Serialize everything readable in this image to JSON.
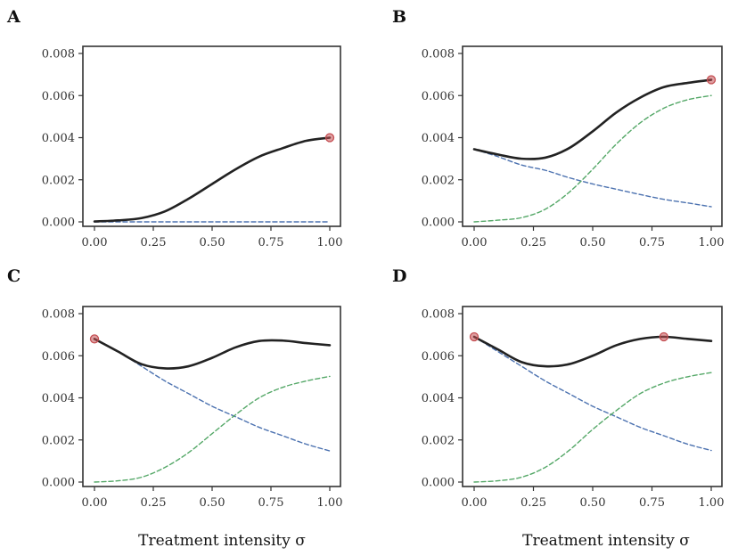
{
  "chart_data": [
    {
      "type": "line",
      "panel": "A",
      "xlabel": "",
      "xlim": [
        0,
        1
      ],
      "ylim": [
        0,
        0.008
      ],
      "xticks": [
        "0.00",
        "0.25",
        "0.50",
        "0.75",
        "1.00"
      ],
      "yticks": [
        "0.000",
        "0.002",
        "0.004",
        "0.006",
        "0.008"
      ],
      "series": [
        {
          "style": "solid",
          "color": "#222222",
          "x": [
            0,
            0.1,
            0.2,
            0.3,
            0.4,
            0.5,
            0.6,
            0.7,
            0.8,
            0.9,
            1.0
          ],
          "y": [
            2e-05,
            7e-05,
            0.00018,
            0.0005,
            0.0011,
            0.0018,
            0.0025,
            0.0031,
            0.0035,
            0.00385,
            0.004
          ]
        },
        {
          "style": "dashed",
          "color": "#4c72b0",
          "x": [
            0,
            0.25,
            0.5,
            0.75,
            1.0
          ],
          "y": [
            0.0,
            0.0,
            0.0,
            0.0,
            0.0
          ]
        }
      ],
      "markers": [
        {
          "x": 1.0,
          "y": 0.004
        }
      ]
    },
    {
      "type": "line",
      "panel": "B",
      "xlabel": "",
      "xlim": [
        0,
        1
      ],
      "ylim": [
        0,
        0.008
      ],
      "xticks": [
        "0.00",
        "0.25",
        "0.50",
        "0.75",
        "1.00"
      ],
      "yticks": [
        "0.000",
        "0.002",
        "0.004",
        "0.006",
        "0.008"
      ],
      "series": [
        {
          "style": "solid",
          "color": "#222222",
          "x": [
            0,
            0.1,
            0.2,
            0.3,
            0.4,
            0.5,
            0.6,
            0.7,
            0.8,
            0.9,
            1.0
          ],
          "y": [
            0.00345,
            0.0032,
            0.003,
            0.00305,
            0.0035,
            0.0043,
            0.0052,
            0.0059,
            0.0064,
            0.0066,
            0.00675
          ]
        },
        {
          "style": "dashed",
          "color": "#4c72b0",
          "x": [
            0,
            0.1,
            0.2,
            0.3,
            0.4,
            0.5,
            0.6,
            0.7,
            0.8,
            0.9,
            1.0
          ],
          "y": [
            0.00345,
            0.0031,
            0.0027,
            0.00245,
            0.0021,
            0.0018,
            0.00155,
            0.0013,
            0.00107,
            0.0009,
            0.00072
          ]
        },
        {
          "style": "dashed",
          "color": "#55a868",
          "x": [
            0,
            0.1,
            0.2,
            0.3,
            0.4,
            0.5,
            0.6,
            0.7,
            0.8,
            0.9,
            1.0
          ],
          "y": [
            0.0,
            8e-05,
            0.0002,
            0.0006,
            0.0014,
            0.0025,
            0.0037,
            0.0047,
            0.0054,
            0.0058,
            0.006
          ]
        }
      ],
      "markers": [
        {
          "x": 1.0,
          "y": 0.00675
        }
      ]
    },
    {
      "type": "line",
      "panel": "C",
      "xlabel": "Treatment intensity σ",
      "xlim": [
        0,
        1
      ],
      "ylim": [
        0,
        0.008
      ],
      "xticks": [
        "0.00",
        "0.25",
        "0.50",
        "0.75",
        "1.00"
      ],
      "yticks": [
        "0.000",
        "0.002",
        "0.004",
        "0.006",
        "0.008"
      ],
      "series": [
        {
          "style": "solid",
          "color": "#222222",
          "x": [
            0,
            0.1,
            0.2,
            0.3,
            0.4,
            0.5,
            0.6,
            0.7,
            0.8,
            0.9,
            1.0
          ],
          "y": [
            0.0068,
            0.0062,
            0.0056,
            0.0054,
            0.0055,
            0.0059,
            0.0064,
            0.0067,
            0.00672,
            0.0066,
            0.0065
          ]
        },
        {
          "style": "dashed",
          "color": "#4c72b0",
          "x": [
            0,
            0.1,
            0.2,
            0.3,
            0.4,
            0.5,
            0.6,
            0.7,
            0.8,
            0.9,
            1.0
          ],
          "y": [
            0.0068,
            0.0062,
            0.0055,
            0.0048,
            0.0042,
            0.0036,
            0.0031,
            0.0026,
            0.0022,
            0.0018,
            0.00148
          ]
        },
        {
          "style": "dashed",
          "color": "#55a868",
          "x": [
            0,
            0.1,
            0.2,
            0.3,
            0.4,
            0.5,
            0.6,
            0.7,
            0.8,
            0.9,
            1.0
          ],
          "y": [
            0.0,
            6e-05,
            0.00023,
            0.0007,
            0.0014,
            0.0023,
            0.0032,
            0.004,
            0.0045,
            0.0048,
            0.00502
          ]
        }
      ],
      "markers": [
        {
          "x": 0.0,
          "y": 0.0068
        }
      ]
    },
    {
      "type": "line",
      "panel": "D",
      "xlabel": "Treatment intensity σ",
      "xlim": [
        0,
        1
      ],
      "ylim": [
        0,
        0.008
      ],
      "xticks": [
        "0.00",
        "0.25",
        "0.50",
        "0.75",
        "1.00"
      ],
      "yticks": [
        "0.000",
        "0.002",
        "0.004",
        "0.006",
        "0.008"
      ],
      "series": [
        {
          "style": "solid",
          "color": "#222222",
          "x": [
            0,
            0.1,
            0.2,
            0.3,
            0.4,
            0.5,
            0.6,
            0.7,
            0.8,
            0.9,
            1.0
          ],
          "y": [
            0.0069,
            0.0063,
            0.0057,
            0.0055,
            0.0056,
            0.006,
            0.0065,
            0.0068,
            0.0069,
            0.0068,
            0.0067
          ]
        },
        {
          "style": "dashed",
          "color": "#4c72b0",
          "x": [
            0,
            0.1,
            0.2,
            0.3,
            0.4,
            0.5,
            0.6,
            0.7,
            0.8,
            0.9,
            1.0
          ],
          "y": [
            0.0069,
            0.0062,
            0.0055,
            0.0048,
            0.0042,
            0.0036,
            0.0031,
            0.0026,
            0.0022,
            0.0018,
            0.0015
          ]
        },
        {
          "style": "dashed",
          "color": "#55a868",
          "x": [
            0,
            0.1,
            0.2,
            0.3,
            0.4,
            0.5,
            0.6,
            0.7,
            0.8,
            0.9,
            1.0
          ],
          "y": [
            0.0,
            6e-05,
            0.00023,
            0.0007,
            0.0015,
            0.0025,
            0.0034,
            0.0042,
            0.0047,
            0.005,
            0.0052
          ]
        }
      ],
      "markers": [
        {
          "x": 0.0,
          "y": 0.0069
        },
        {
          "x": 0.8,
          "y": 0.0069
        }
      ]
    }
  ],
  "marker_color": "#c44e52"
}
